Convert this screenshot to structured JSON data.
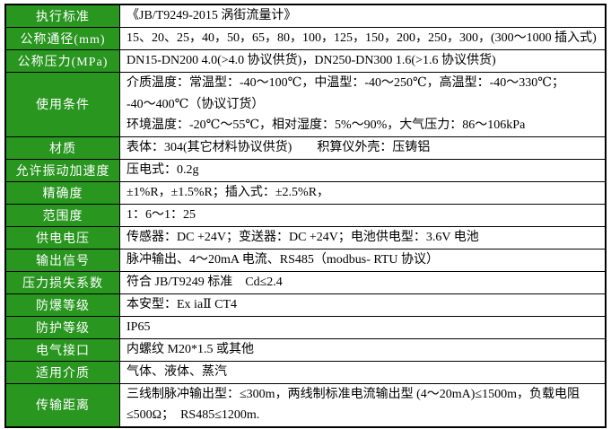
{
  "page": {
    "background_color": "#ffffff",
    "border_color": "#000000",
    "label_bg_color": "#28961f",
    "label_text_color": "#ffffff"
  },
  "table": {
    "rows": [
      {
        "label": "执行标准",
        "value": "《JB/T9249-2015 涡街流量计》"
      },
      {
        "label": "公称通径(mm)",
        "value": "15、20、25，40，50，65，80，100，125，150，200，250，300，(300～1000 插入式)"
      },
      {
        "label": "公称压力(MPa)",
        "value": "DN15-DN200 4.0(>4.0 协议供货)，DN250-DN300 1.6(>1.6 协议供货)"
      },
      {
        "label": "使用条件",
        "lines": [
          "介质温度：常温型：-40～100℃，中温型：-40～250℃，高温型：-40～330℃；",
          "-40～400℃（协议订货）",
          "环境温度：-20℃～55℃，相对湿度：5%～90%，大气压力：86～106kPa"
        ]
      },
      {
        "label": "材质",
        "value": "表体：304(其它材料协议供货)　　积算仪外壳：压铸铝"
      },
      {
        "label": "允许振动加速度",
        "value": "压电式：0.2g"
      },
      {
        "label": "精确度",
        "value": "±1%R，±1.5%R；插入式：±2.5%R，"
      },
      {
        "label": "范围度",
        "value": "1：6～1：25"
      },
      {
        "label": "供电电压",
        "value": "传感器：DC +24V；变送器：DC +24V；电池供电型：3.6V 电池"
      },
      {
        "label": "输出信号",
        "value": "脉冲输出、4～20mA 电流、RS485（modbus- RTU 协议）"
      },
      {
        "label": "压力损失系数",
        "value": "符合 JB/T9249 标准　Cd≤2.4"
      },
      {
        "label": "防爆等级",
        "value": "本安型：Ex iaⅡ CT4"
      },
      {
        "label": "防护等级",
        "value": "IP65"
      },
      {
        "label": "电气接口",
        "value": "内螺纹 M20*1.5 或其他"
      },
      {
        "label": "适用介质",
        "value": "气体、液体、蒸汽"
      },
      {
        "label": "传输距离",
        "lines": [
          "三线制脉冲输出型：≤300m，两线制标准电流输出型 (4～20mA)≤1500m，负载电阻",
          "≤500Ω；　RS485≤1200m."
        ]
      }
    ]
  }
}
